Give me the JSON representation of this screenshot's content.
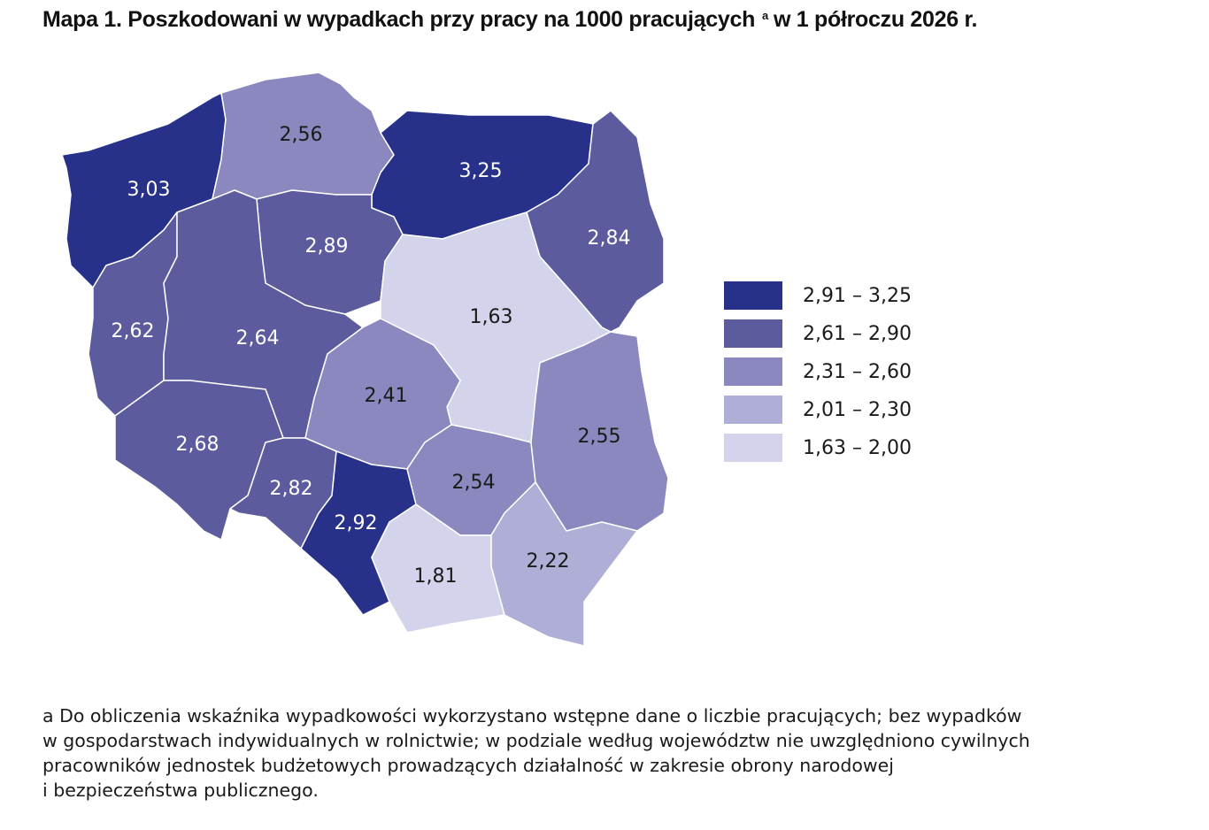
{
  "title": {
    "text": "Mapa 1. Poszkodowani w wypadkach przy pracy na 1000 pracujących",
    "superscript": "a",
    "suffix": "w 1 półroczu 2026 r."
  },
  "map": {
    "regions": [
      {
        "value": 3.03,
        "label": "3,03"
      },
      {
        "value": 2.56,
        "label": "2,56"
      },
      {
        "value": 3.25,
        "label": "3,25"
      },
      {
        "value": 2.84,
        "label": "2,84"
      },
      {
        "value": 2.89,
        "label": "2,89"
      },
      {
        "value": 1.63,
        "label": "1,63"
      },
      {
        "value": 2.62,
        "label": "2,62"
      },
      {
        "value": 2.64,
        "label": "2,64"
      },
      {
        "value": 2.41,
        "label": "2,41"
      },
      {
        "value": 2.68,
        "label": "2,68"
      },
      {
        "value": 2.82,
        "label": "2,82"
      },
      {
        "value": 2.92,
        "label": "2,92"
      },
      {
        "value": 2.54,
        "label": "2,54"
      },
      {
        "value": 2.55,
        "label": "2,55"
      },
      {
        "value": 1.81,
        "label": "1,81"
      },
      {
        "value": 2.22,
        "label": "2,22"
      }
    ],
    "legend": [
      {
        "min": 2.91,
        "max": 3.25,
        "label": "2,91 – 3,25",
        "color": "#27318a",
        "text_color": "#ffffff"
      },
      {
        "min": 2.61,
        "max": 2.9,
        "label": "2,61 – 2,90",
        "color": "#5b5b9e",
        "text_color": "#ffffff"
      },
      {
        "min": 2.31,
        "max": 2.6,
        "label": "2,31 – 2,60",
        "color": "#8a88be",
        "text_color": "#1a1a1a"
      },
      {
        "min": 2.01,
        "max": 2.3,
        "label": "2,01 – 2,30",
        "color": "#afaed7",
        "text_color": "#1a1a1a"
      },
      {
        "min": 1.63,
        "max": 2.0,
        "label": "1,63 – 2,00",
        "color": "#d3d3ec",
        "text_color": "#1a1a1a"
      }
    ]
  },
  "footnote": [
    "a Do obliczenia wskaźnika wypadkowości wykorzystano wstępne dane o liczbie pracujących; bez wypadków",
    "w gospodarstwach indywidualnych w rolnictwie; w podziale według województw nie uwzględniono cywilnych",
    "pracowników jednostek budżetowych prowadzących działalność w zakresie obrony narodowej",
    "i bezpieczeństwa publicznego."
  ]
}
